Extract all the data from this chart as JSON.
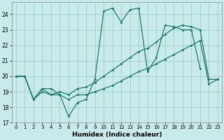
{
  "xlabel": "Humidex (Indice chaleur)",
  "bg_color": "#c8eaea",
  "line_color": "#1a7a6e",
  "grid_color": "#a0cccc",
  "xlim": [
    -0.5,
    23.5
  ],
  "ylim": [
    17.0,
    24.8
  ],
  "xticks": [
    0,
    1,
    2,
    3,
    4,
    5,
    6,
    7,
    8,
    9,
    10,
    11,
    12,
    13,
    14,
    15,
    16,
    17,
    18,
    19,
    20,
    21,
    22,
    23
  ],
  "yticks": [
    17,
    18,
    19,
    20,
    21,
    22,
    23,
    24
  ],
  "series": [
    {
      "x": [
        0,
        1,
        2,
        3,
        4,
        5,
        6,
        7,
        8,
        9,
        10,
        11,
        12,
        13,
        14,
        15,
        16,
        17,
        18,
        19,
        20,
        21
      ],
      "y": [
        20.0,
        20.0,
        18.5,
        19.2,
        19.2,
        18.8,
        17.4,
        18.3,
        18.5,
        19.8,
        24.2,
        24.4,
        23.5,
        24.3,
        24.4,
        20.3,
        21.2,
        23.3,
        23.2,
        23.0,
        23.0,
        20.5
      ]
    },
    {
      "x": [
        0,
        1,
        2,
        3,
        4,
        5,
        6,
        7,
        8,
        9,
        10,
        11,
        12,
        13,
        14,
        15,
        16,
        17,
        18,
        19,
        20,
        21,
        22,
        23
      ],
      "y": [
        20.0,
        20.0,
        18.5,
        19.2,
        18.8,
        19.0,
        18.8,
        19.2,
        19.3,
        19.6,
        20.0,
        20.4,
        20.8,
        21.2,
        21.6,
        21.8,
        22.2,
        22.7,
        23.1,
        23.3,
        23.2,
        23.0,
        19.8,
        19.8
      ]
    },
    {
      "x": [
        0,
        1,
        2,
        3,
        4,
        5,
        6,
        7,
        8,
        9,
        10,
        11,
        12,
        13,
        14,
        15,
        16,
        17,
        18,
        19,
        20,
        21,
        22,
        23
      ],
      "y": [
        20.0,
        20.0,
        18.5,
        19.0,
        18.8,
        18.8,
        18.5,
        18.8,
        18.8,
        19.0,
        19.2,
        19.4,
        19.7,
        20.0,
        20.3,
        20.5,
        20.8,
        21.1,
        21.4,
        21.7,
        22.0,
        22.3,
        19.5,
        19.8
      ]
    }
  ]
}
